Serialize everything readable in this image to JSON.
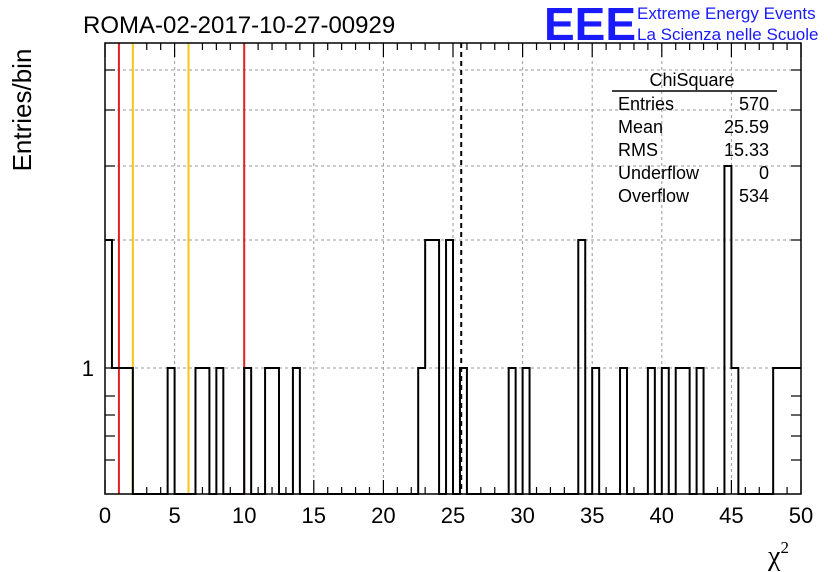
{
  "chart_data": {
    "type": "histogram",
    "title": "ROMA-02-2017-10-27-00929",
    "ylabel": "Entries/bin",
    "xlabel": "χ",
    "xlabel_superscript": "2",
    "xlim": [
      0,
      50
    ],
    "y_scale": "log",
    "x_ticks": [
      0,
      5,
      10,
      15,
      20,
      25,
      30,
      35,
      40,
      45,
      50
    ],
    "y_tick_label": "1",
    "grid": true,
    "bin_width": 0.5,
    "bins": [
      {
        "x": 0.0,
        "count": 2
      },
      {
        "x": 0.5,
        "count": 1
      },
      {
        "x": 1.0,
        "count": 1
      },
      {
        "x": 1.5,
        "count": 1
      },
      {
        "x": 4.5,
        "count": 1
      },
      {
        "x": 6.5,
        "count": 1
      },
      {
        "x": 7.0,
        "count": 1
      },
      {
        "x": 8.0,
        "count": 1
      },
      {
        "x": 10.0,
        "count": 1
      },
      {
        "x": 11.5,
        "count": 1
      },
      {
        "x": 12.0,
        "count": 1
      },
      {
        "x": 13.5,
        "count": 1
      },
      {
        "x": 22.5,
        "count": 1
      },
      {
        "x": 23.0,
        "count": 2
      },
      {
        "x": 23.5,
        "count": 2
      },
      {
        "x": 24.5,
        "count": 2
      },
      {
        "x": 25.5,
        "count": 1
      },
      {
        "x": 29.0,
        "count": 1
      },
      {
        "x": 30.0,
        "count": 1
      },
      {
        "x": 34.0,
        "count": 2
      },
      {
        "x": 35.0,
        "count": 1
      },
      {
        "x": 37.0,
        "count": 1
      },
      {
        "x": 39.0,
        "count": 1
      },
      {
        "x": 40.0,
        "count": 1
      },
      {
        "x": 41.0,
        "count": 1
      },
      {
        "x": 41.5,
        "count": 1
      },
      {
        "x": 42.5,
        "count": 1
      },
      {
        "x": 44.5,
        "count": 3
      },
      {
        "x": 45.0,
        "count": 1
      },
      {
        "x": 48.0,
        "count": 1
      },
      {
        "x": 48.5,
        "count": 1
      },
      {
        "x": 49.0,
        "count": 1
      },
      {
        "x": 49.5,
        "count": 1
      }
    ],
    "vertical_lines": [
      {
        "x": 1.0,
        "color": "#dd2222",
        "style": "solid"
      },
      {
        "x": 2.0,
        "color": "#f5c518",
        "style": "solid"
      },
      {
        "x": 6.0,
        "color": "#f5c518",
        "style": "solid"
      },
      {
        "x": 10.0,
        "color": "#dd2222",
        "style": "solid"
      },
      {
        "x": 25.59,
        "color": "#000000",
        "style": "dashed"
      }
    ],
    "stats_box": {
      "name": "ChiSquare",
      "rows": [
        {
          "label": "Entries",
          "value": "570"
        },
        {
          "label": "Mean",
          "value": "25.59"
        },
        {
          "label": "RMS",
          "value": "15.33"
        },
        {
          "label": "Underflow",
          "value": "0"
        },
        {
          "label": "Overflow",
          "value": "534"
        }
      ]
    }
  },
  "logo": {
    "mark": "EEE",
    "line1": "Extreme Energy Events",
    "line2": "La Scienza nelle Scuole"
  }
}
